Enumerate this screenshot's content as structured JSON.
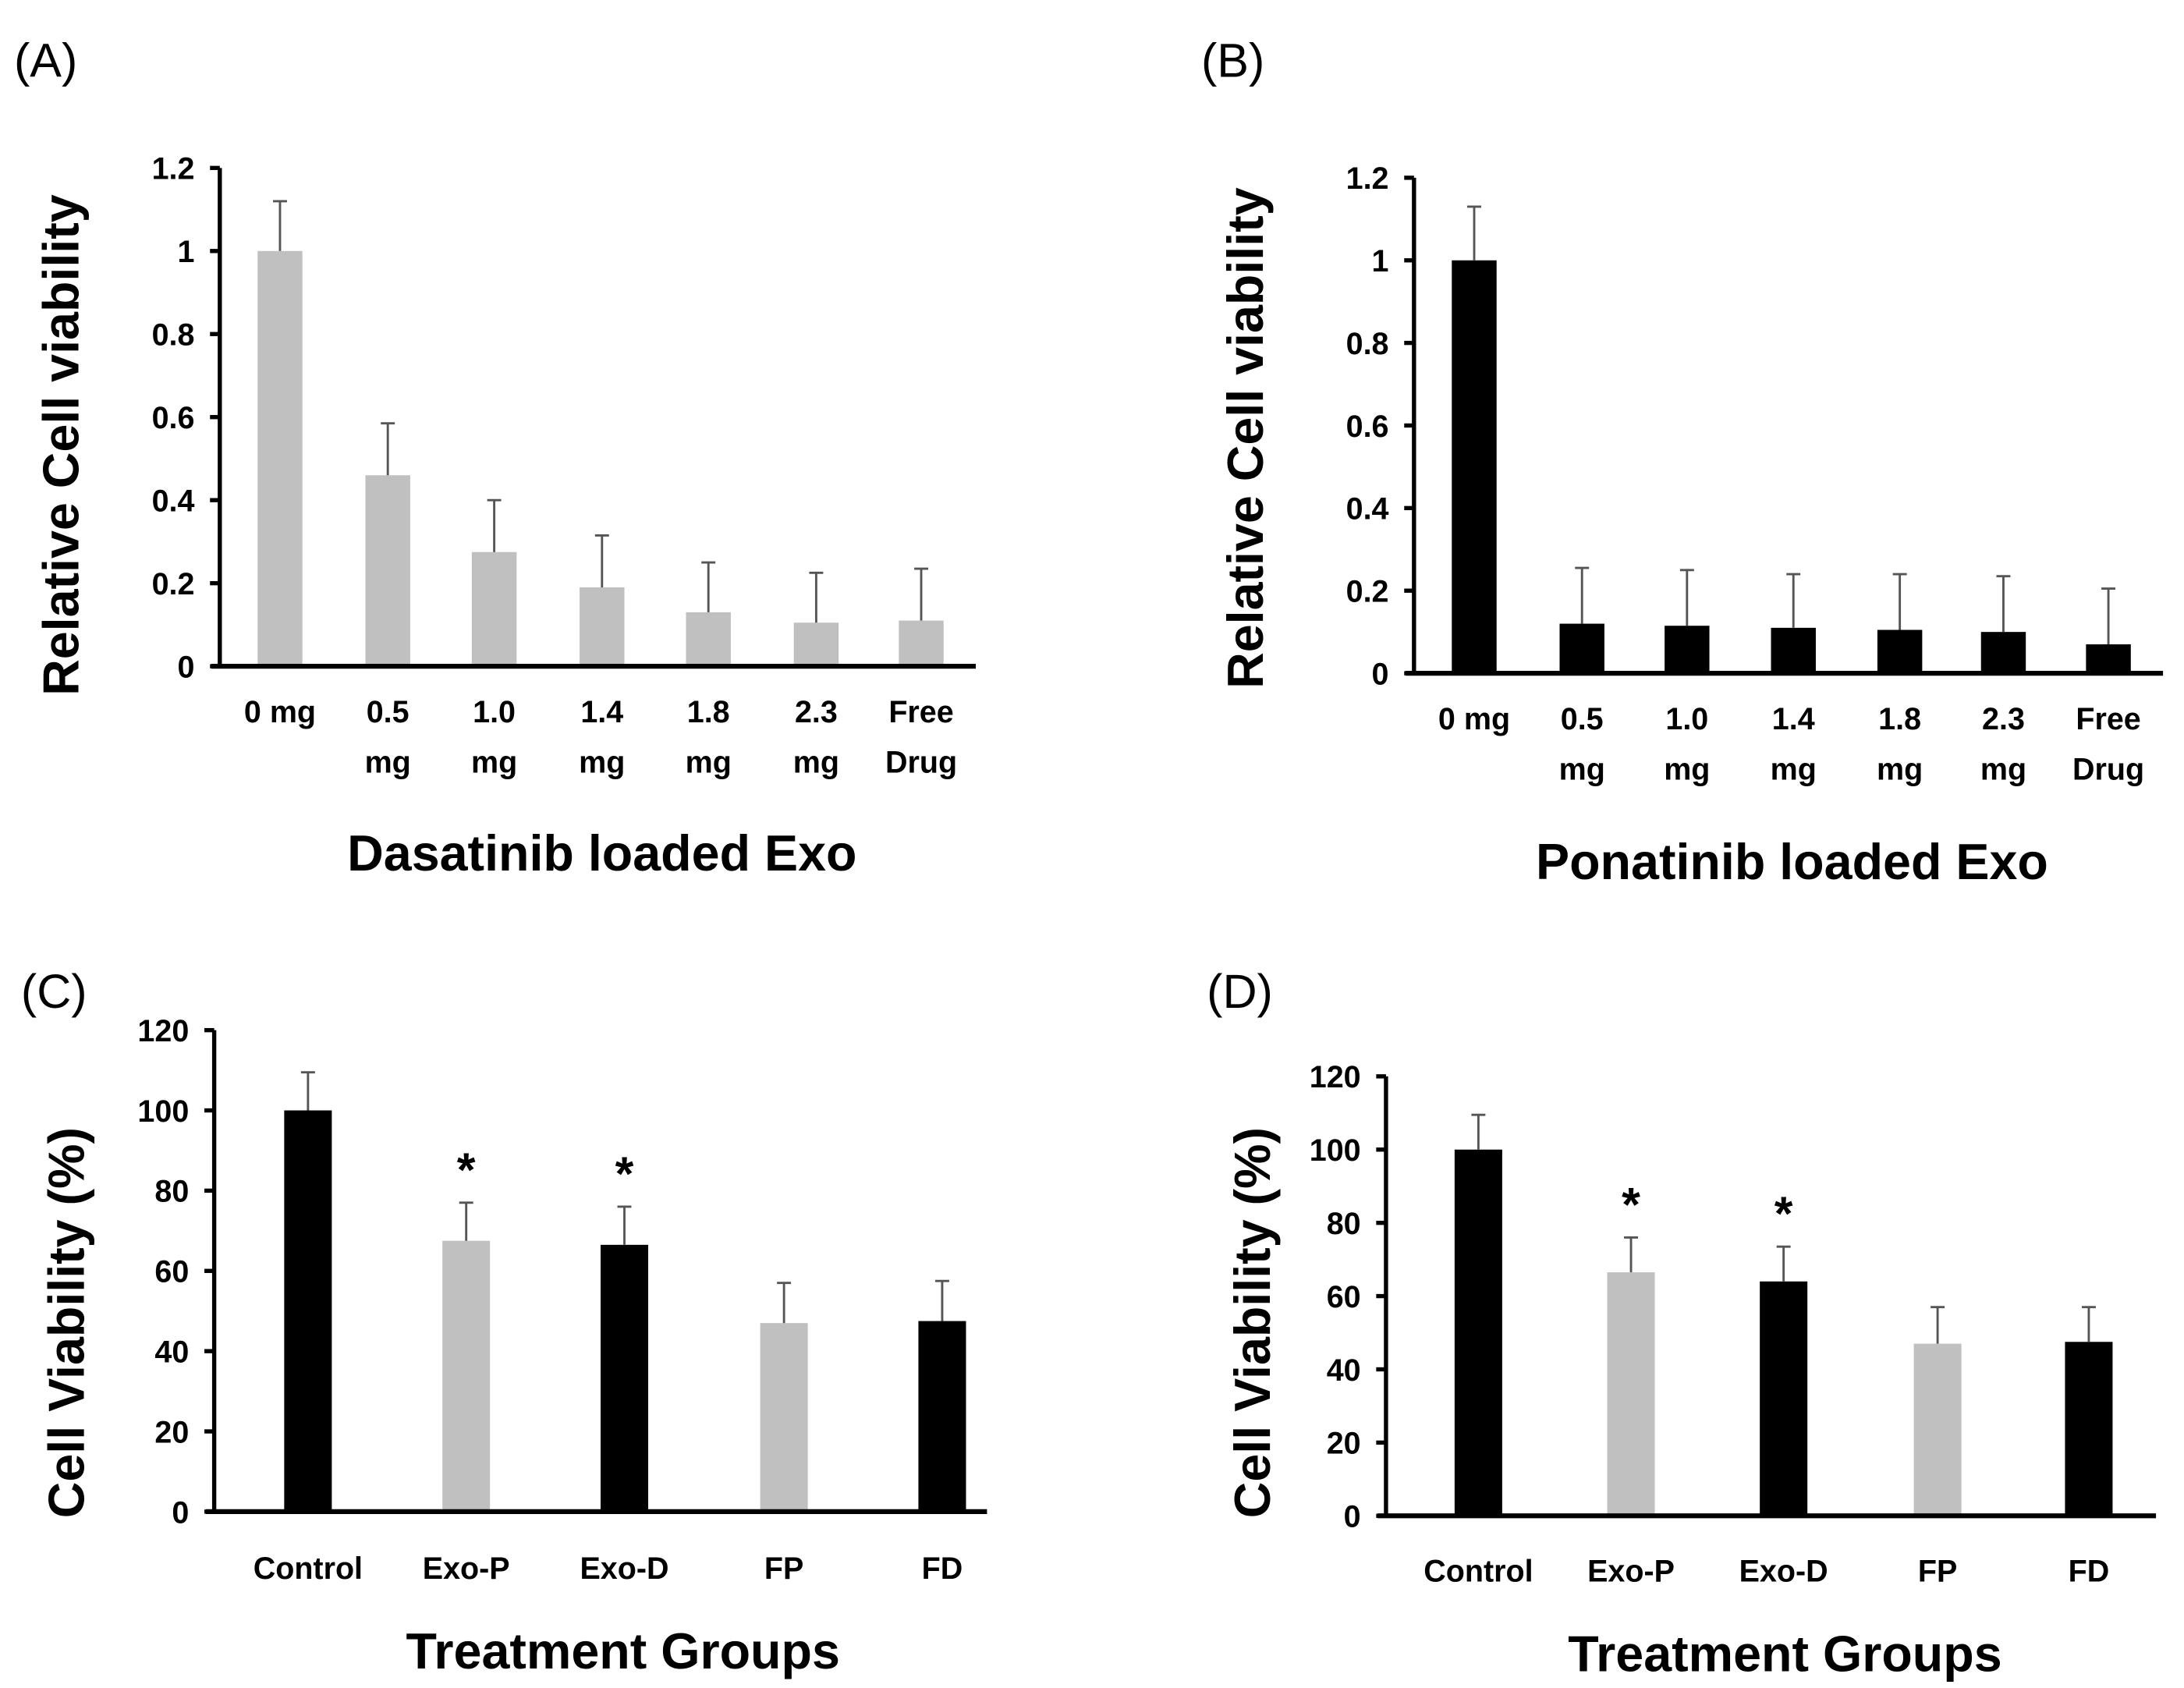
{
  "chart_data": [
    {
      "panel": "(A)",
      "type": "bar",
      "categories": [
        [
          "0 mg"
        ],
        [
          "0.5",
          "mg"
        ],
        [
          "1.0",
          "mg"
        ],
        [
          "1.4",
          "mg"
        ],
        [
          "1.8",
          "mg"
        ],
        [
          "2.3",
          "mg"
        ],
        [
          "Free",
          "Drug"
        ]
      ],
      "values": [
        1.0,
        0.46,
        0.275,
        0.19,
        0.13,
        0.105,
        0.11
      ],
      "errors": [
        0.12,
        0.125,
        0.125,
        0.125,
        0.12,
        0.12,
        0.125
      ],
      "colors": [
        "#c0c0c0",
        "#c0c0c0",
        "#c0c0c0",
        "#c0c0c0",
        "#c0c0c0",
        "#c0c0c0",
        "#c0c0c0"
      ],
      "annotations": [
        "",
        "",
        "",
        "",
        "",
        "",
        ""
      ],
      "xlabel": "Dasatinib loaded Exo",
      "ylabel": "Relative Cell viability",
      "ylim": [
        0,
        1.2
      ],
      "yticks": [
        "0",
        "0.2",
        "0.4",
        "0.6",
        "0.8",
        "1",
        "1.2"
      ],
      "grid": false
    },
    {
      "panel": "(B)",
      "type": "bar",
      "categories": [
        [
          "0 mg"
        ],
        [
          "0.5",
          "mg"
        ],
        [
          "1.0",
          "mg"
        ],
        [
          "1.4",
          "mg"
        ],
        [
          "1.8",
          "mg"
        ],
        [
          "2.3",
          "mg"
        ],
        [
          "Free",
          "Drug"
        ]
      ],
      "values": [
        1.0,
        0.12,
        0.115,
        0.11,
        0.105,
        0.1,
        0.07
      ],
      "errors": [
        0.13,
        0.135,
        0.135,
        0.13,
        0.135,
        0.135,
        0.135
      ],
      "colors": [
        "#000000",
        "#000000",
        "#000000",
        "#000000",
        "#000000",
        "#000000",
        "#000000"
      ],
      "annotations": [
        "",
        "",
        "",
        "",
        "",
        "",
        ""
      ],
      "xlabel": "Ponatinib loaded Exo",
      "ylabel": "Relative Cell viability",
      "ylim": [
        0,
        1.2
      ],
      "yticks": [
        "0",
        "0.2",
        "0.4",
        "0.6",
        "0.8",
        "1",
        "1.2"
      ],
      "grid": false
    },
    {
      "panel": "(C)",
      "type": "bar",
      "categories": [
        [
          "Control"
        ],
        [
          "Exo-P"
        ],
        [
          "Exo-D"
        ],
        [
          "FP"
        ],
        [
          "FD"
        ]
      ],
      "values": [
        100,
        67.5,
        66.5,
        47,
        47.5
      ],
      "errors": [
        9.5,
        9.5,
        9.5,
        10,
        10
      ],
      "colors": [
        "#000000",
        "#c0c0c0",
        "#000000",
        "#c0c0c0",
        "#000000"
      ],
      "annotations": [
        "",
        "*",
        "*",
        "",
        ""
      ],
      "xlabel": "Treatment Groups",
      "ylabel": "Cell Viability (%)",
      "ylim": [
        0,
        120
      ],
      "yticks": [
        "0",
        "20",
        "40",
        "60",
        "80",
        "100",
        "120"
      ],
      "grid": false
    },
    {
      "panel": "(D)",
      "type": "bar",
      "categories": [
        [
          "Control"
        ],
        [
          "Exo-P"
        ],
        [
          "Exo-D"
        ],
        [
          "FP"
        ],
        [
          "FD"
        ]
      ],
      "values": [
        100,
        66.5,
        64,
        47,
        47.5
      ],
      "errors": [
        9.5,
        9.5,
        9.5,
        10,
        9.5
      ],
      "colors": [
        "#000000",
        "#c0c0c0",
        "#000000",
        "#c0c0c0",
        "#000000"
      ],
      "annotations": [
        "",
        "*",
        "*",
        "",
        ""
      ],
      "xlabel": "Treatment Groups",
      "ylabel": "Cell Viability (%)",
      "ylim": [
        0,
        120
      ],
      "yticks": [
        "0",
        "20",
        "40",
        "60",
        "80",
        "100",
        "120"
      ],
      "grid": false
    }
  ]
}
